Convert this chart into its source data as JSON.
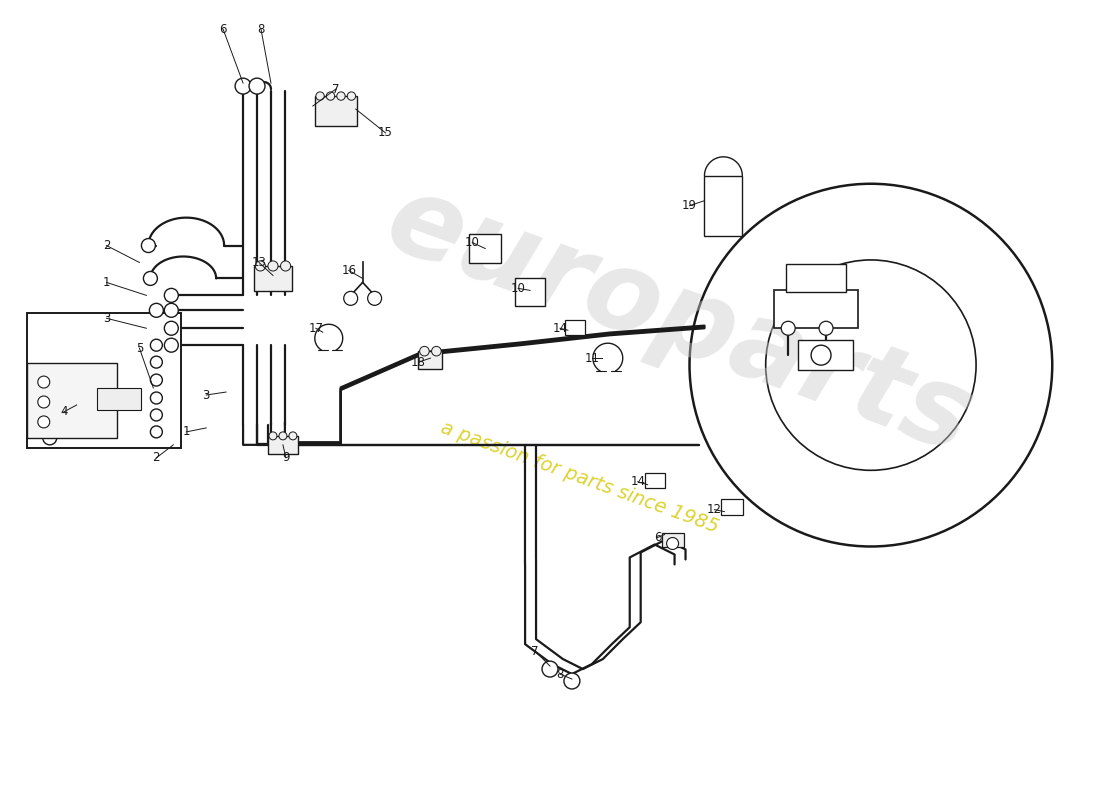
{
  "bg_color": "#ffffff",
  "line_color": "#1a1a1a",
  "lw_tube": 1.6,
  "lw_part": 1.2,
  "lw_thin": 0.8,
  "watermark1": "europarts",
  "watermark2": "a passion for parts since 1985",
  "wm_gray": "#cccccc",
  "wm_yellow": "#d4c800",
  "labels": [
    [
      "6",
      2.35,
      7.72
    ],
    [
      "8",
      2.72,
      7.72
    ],
    [
      "7",
      3.35,
      7.1
    ],
    [
      "15",
      3.85,
      6.65
    ],
    [
      "2",
      1.05,
      5.55
    ],
    [
      "1",
      1.05,
      5.18
    ],
    [
      "3",
      1.05,
      4.82
    ],
    [
      "13",
      2.8,
      5.38
    ],
    [
      "16",
      3.62,
      5.28
    ],
    [
      "17",
      3.3,
      4.72
    ],
    [
      "5",
      1.38,
      4.52
    ],
    [
      "4",
      0.62,
      3.88
    ],
    [
      "1",
      1.85,
      3.7
    ],
    [
      "2",
      1.55,
      3.42
    ],
    [
      "3",
      2.05,
      4.08
    ],
    [
      "9",
      2.85,
      3.42
    ],
    [
      "18",
      4.3,
      4.38
    ],
    [
      "10",
      4.85,
      5.55
    ],
    [
      "10",
      5.3,
      5.12
    ],
    [
      "14",
      5.72,
      4.72
    ],
    [
      "11",
      6.08,
      4.42
    ],
    [
      "14",
      6.52,
      3.18
    ],
    [
      "12",
      7.28,
      2.9
    ],
    [
      "19",
      7.05,
      5.95
    ],
    [
      "6",
      6.68,
      2.62
    ],
    [
      "7",
      5.48,
      1.48
    ],
    [
      "8",
      5.72,
      1.25
    ]
  ]
}
